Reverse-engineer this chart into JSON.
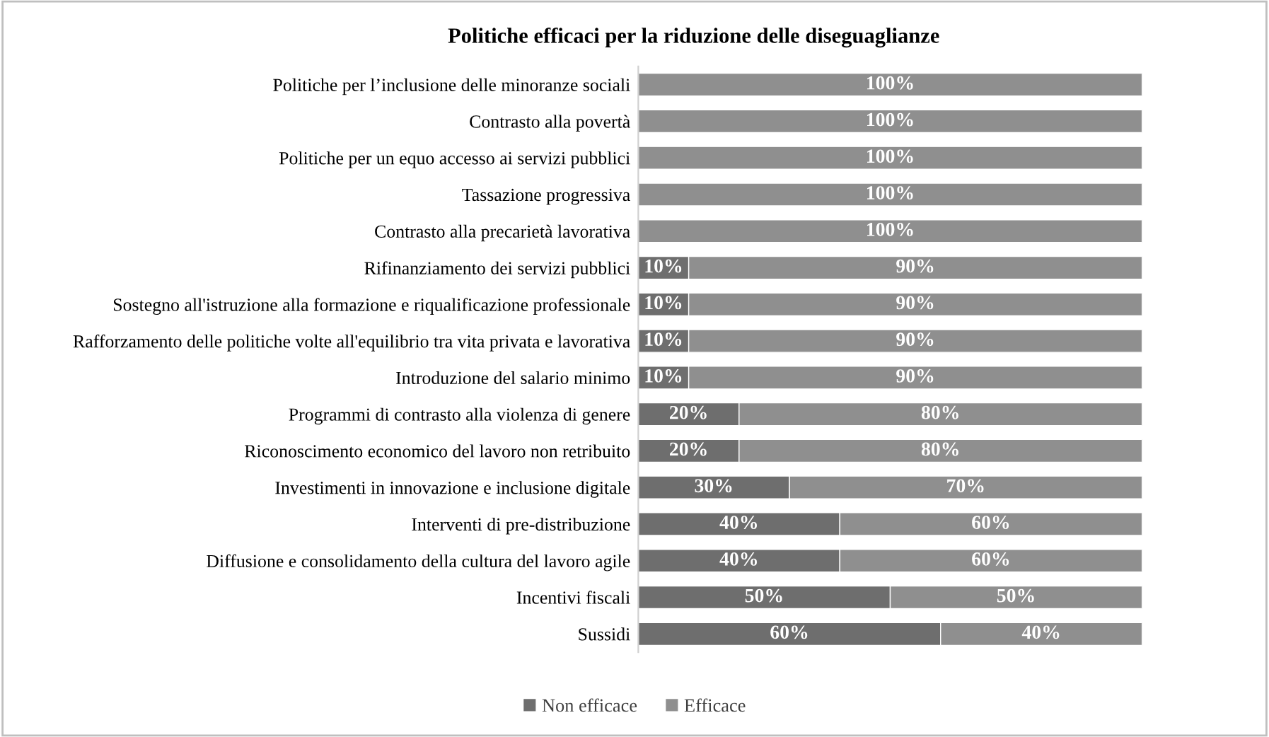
{
  "chart_data": {
    "type": "bar",
    "orientation": "horizontal",
    "stacked": true,
    "title": "Politiche efficaci per la riduzione delle diseguaglianze",
    "categories": [
      "Politiche per l’inclusione delle minoranze sociali",
      "Contrasto alla povertà",
      "Politiche per un equo accesso ai servizi pubblici",
      "Tassazione progressiva",
      "Contrasto alla precarietà lavorativa",
      "Rifinanziamento dei servizi pubblici",
      "Sostegno all'istruzione alla formazione e riqualificazione professionale",
      "Rafforzamento delle politiche volte all'equilibrio tra vita privata e lavorativa",
      "Introduzione del salario minimo",
      "Programmi di contrasto alla violenza di genere",
      "Riconoscimento economico del lavoro non retribuito",
      "Investimenti in innovazione e inclusione digitale",
      "Interventi di pre-distribuzione",
      "Diffusione e consolidamento della cultura del lavoro agile",
      "Incentivi fiscali",
      "Sussidi"
    ],
    "series": [
      {
        "name": "Non efficace",
        "color": "#6e6e6e",
        "values": [
          0,
          0,
          0,
          0,
          0,
          10,
          10,
          10,
          10,
          20,
          20,
          30,
          40,
          40,
          50,
          60
        ],
        "value_labels": [
          null,
          null,
          null,
          null,
          null,
          "10%",
          "10%",
          "10%",
          "10%",
          "20%",
          "20%",
          "30%",
          "40%",
          "40%",
          "50%",
          "60%"
        ]
      },
      {
        "name": "Efficace",
        "color": "#8f8f8f",
        "values": [
          100,
          100,
          100,
          100,
          100,
          90,
          90,
          90,
          90,
          80,
          80,
          70,
          60,
          60,
          50,
          40
        ],
        "value_labels": [
          "100%",
          "100%",
          "100%",
          "100%",
          "100%",
          "90%",
          "90%",
          "90%",
          "90%",
          "80%",
          "80%",
          "70%",
          "60%",
          "60%",
          "50%",
          "40%"
        ]
      }
    ],
    "legend": "bottom",
    "grid": false,
    "tick_labels": "y"
  }
}
